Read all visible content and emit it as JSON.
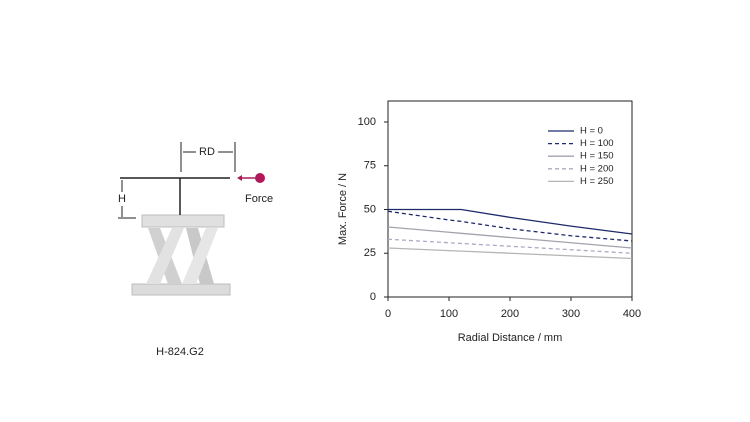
{
  "diagram": {
    "labels": {
      "rd": "RD",
      "h": "H",
      "force": "Force",
      "caption": "H-824.G2"
    }
  },
  "chart_data": {
    "type": "line",
    "x_label": "Radial Distance / mm",
    "y_label": "Max. Force / N",
    "x": [
      0,
      100,
      120,
      200,
      300,
      400
    ],
    "series": [
      {
        "name": "H = 0",
        "color": "#1f2a6b",
        "dash": false,
        "values": [
          50,
          50,
          50,
          45.5,
          40.5,
          36
        ]
      },
      {
        "name": "H = 100",
        "color": "#1f2a6b",
        "dash": true,
        "values": [
          49,
          44,
          43.2,
          39,
          35,
          32
        ]
      },
      {
        "name": "H = 150",
        "color": "#a3a3ab",
        "dash": false,
        "values": [
          40,
          37,
          36.4,
          34,
          31,
          28
        ]
      },
      {
        "name": "H = 200",
        "color": "#a9abc4",
        "dash": true,
        "values": [
          33,
          31,
          30.6,
          29,
          27,
          25
        ]
      },
      {
        "name": "H = 250",
        "color": "#b5b5b5",
        "dash": false,
        "values": [
          28,
          26.5,
          26.2,
          25,
          23.5,
          22
        ]
      }
    ],
    "xlim": [
      0,
      400
    ],
    "xticks": [
      0,
      100,
      200,
      300,
      400
    ],
    "ylim": [
      0,
      100
    ],
    "yticks": [
      0,
      25,
      50,
      75,
      100
    ],
    "grid": false,
    "legend": "upper right"
  }
}
